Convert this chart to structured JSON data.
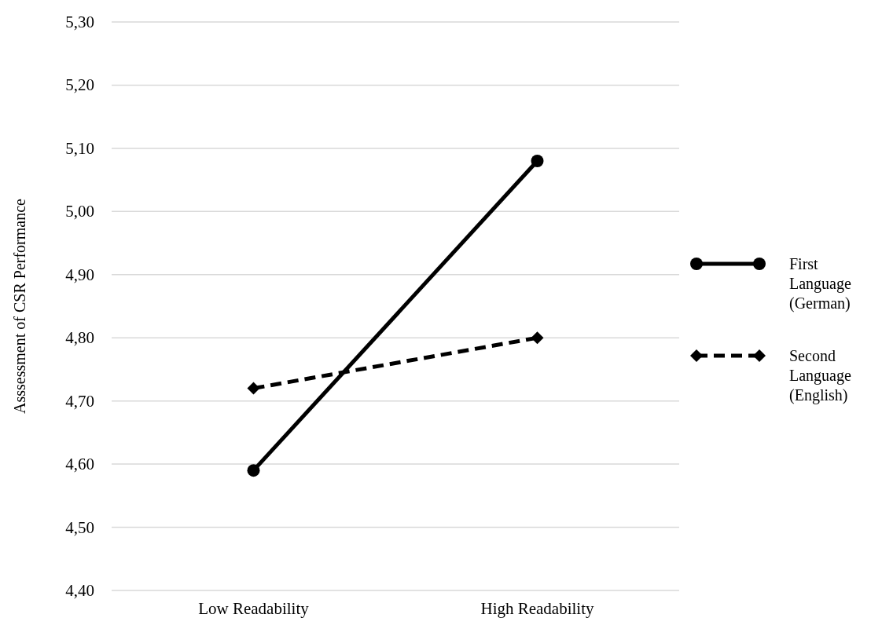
{
  "chart_data": {
    "type": "line",
    "ylabel": "Asssessment of CSR Performance",
    "categories": [
      "Low Readability",
      "High Readability"
    ],
    "series": [
      {
        "name": "First Language (German)",
        "color": "#000000",
        "values": [
          4.59,
          5.08
        ],
        "marker": "circle",
        "line_style": "solid"
      },
      {
        "name": "Second Language (English)",
        "color": "#000000",
        "values": [
          4.72,
          4.8
        ],
        "marker": "diamond",
        "line_style": "dashed"
      }
    ],
    "ylim": [
      4.4,
      5.3
    ],
    "yticks": [
      {
        "value": 4.4,
        "label": "4,40"
      },
      {
        "value": 4.5,
        "label": "4,50"
      },
      {
        "value": 4.6,
        "label": "4,60"
      },
      {
        "value": 4.7,
        "label": "4,70"
      },
      {
        "value": 4.8,
        "label": "4,80"
      },
      {
        "value": 4.9,
        "label": "4,90"
      },
      {
        "value": 5.0,
        "label": "5,00"
      },
      {
        "value": 5.1,
        "label": "5,10"
      },
      {
        "value": 5.2,
        "label": "5,20"
      },
      {
        "value": 5.3,
        "label": "5,30"
      }
    ],
    "grid": "y",
    "legend": "right"
  }
}
